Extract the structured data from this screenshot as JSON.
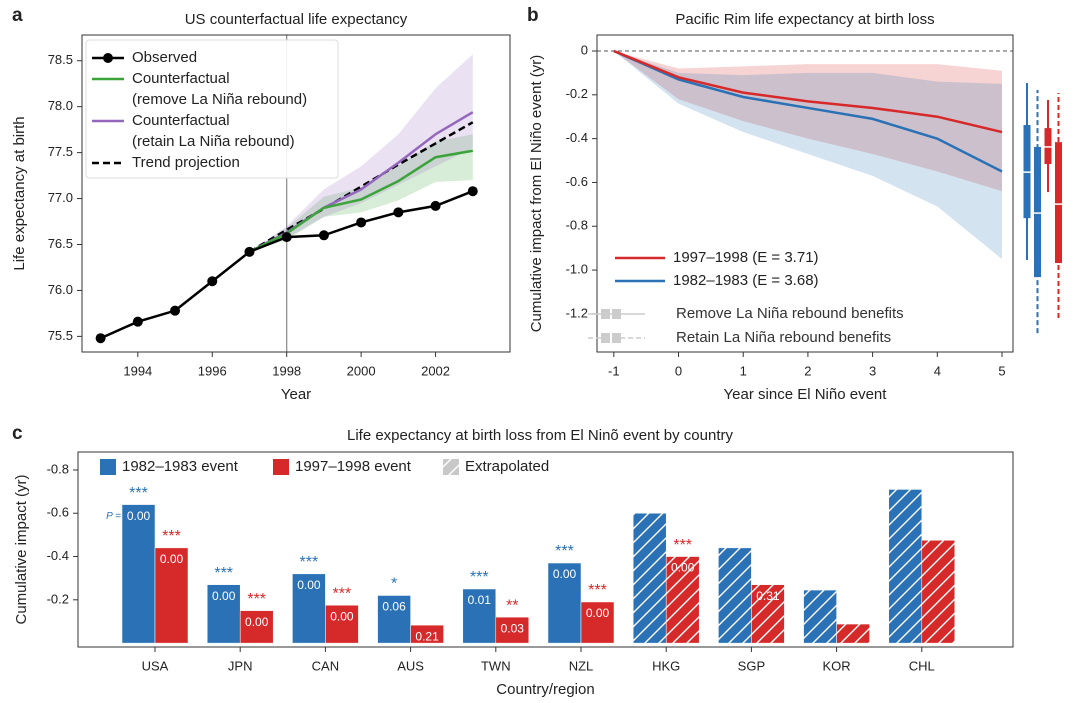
{
  "chart_data": [
    {
      "type": "line",
      "panel_label": "a",
      "title": "US counterfactual life expectancy",
      "xlabel": "Year",
      "ylabel": "Life expectancy at birth",
      "x": [
        1993,
        1994,
        1995,
        1996,
        1997,
        1998,
        1999,
        2000,
        2001,
        2002,
        2003
      ],
      "xlim": [
        1992.5,
        2004.0
      ],
      "xticks": [
        1994,
        1996,
        1998,
        2000,
        2002
      ],
      "ylim": [
        75.33,
        78.78
      ],
      "yticks": [
        75.5,
        {
          "value": 76,
          "label": "76.0"
        },
        76.5,
        {
          "value": 77,
          "label": "77.0"
        },
        77.5,
        {
          "value": 78,
          "label": "78.0"
        },
        78.5
      ],
      "vline": 1998,
      "series": [
        {
          "name": "Observed",
          "color": "#000000",
          "marker": "o",
          "linestyle": "solid",
          "values": [
            75.48,
            75.66,
            75.78,
            76.1,
            76.42,
            76.58,
            76.6,
            76.74,
            76.85,
            76.92,
            77.08
          ]
        },
        {
          "name": "Counterfactual\n(remove La Niña rebound)",
          "color": "#3aa33a",
          "linestyle": "solid",
          "values": [
            null,
            null,
            null,
            null,
            76.42,
            76.62,
            76.9,
            76.99,
            77.19,
            77.45,
            77.52
          ],
          "lower": [
            null,
            null,
            null,
            null,
            76.42,
            76.55,
            76.8,
            76.85,
            76.98,
            77.18,
            77.2
          ],
          "upper": [
            null,
            null,
            null,
            null,
            76.42,
            76.68,
            77.02,
            77.12,
            77.36,
            77.62,
            77.7
          ]
        },
        {
          "name": "Counterfactual\n(retain La Niña rebound)",
          "color": "#9467bd",
          "linestyle": "solid",
          "values": [
            null,
            null,
            null,
            null,
            76.42,
            76.63,
            76.9,
            77.1,
            77.39,
            77.7,
            77.94
          ],
          "lower": [
            null,
            null,
            null,
            null,
            76.42,
            76.57,
            76.8,
            76.95,
            77.15,
            77.35,
            77.55
          ],
          "upper": [
            null,
            null,
            null,
            null,
            76.42,
            76.7,
            77.1,
            77.35,
            77.7,
            78.2,
            78.57
          ]
        },
        {
          "name": "Trend projection",
          "color": "#000000",
          "linestyle": "dashed",
          "values": [
            null,
            null,
            null,
            null,
            76.42,
            76.66,
            76.89,
            77.13,
            77.37,
            77.6,
            77.83
          ]
        }
      ]
    },
    {
      "type": "line",
      "panel_label": "b",
      "title": "Pacific Rim life expectancy at birth loss",
      "xlabel": "Year since El Niño event",
      "ylabel": "Cumulative impact from El Niño event (yr)",
      "x": [
        -1,
        0,
        1,
        2,
        3,
        4,
        5
      ],
      "xlim": [
        -1.26,
        5.17
      ],
      "xticks": [
        -1,
        0,
        1,
        2,
        3,
        4,
        5
      ],
      "ylim": [
        -1.374,
        0.073
      ],
      "yticks": [
        -1.2,
        {
          "value": -1,
          "label": "-1.0"
        },
        -0.8,
        -0.6,
        -0.4,
        -0.2,
        0
      ],
      "hline": 0,
      "series": [
        {
          "name": "1997–1998 (E = 3.71)",
          "color": "#d62a2a",
          "linestyle": "solid",
          "values": [
            0,
            -0.12,
            -0.19,
            -0.23,
            -0.26,
            -0.3,
            -0.37
          ],
          "lower": [
            0,
            -0.22,
            -0.32,
            -0.4,
            -0.47,
            -0.55,
            -0.64
          ],
          "upper": [
            0,
            -0.08,
            -0.07,
            -0.06,
            -0.06,
            -0.06,
            -0.09
          ]
        },
        {
          "name": "1982–1983 (E = 3.68)",
          "color": "#2a72b5",
          "linestyle": "solid",
          "values": [
            0,
            -0.13,
            -0.21,
            -0.26,
            -0.31,
            -0.4,
            -0.55
          ],
          "lower": [
            0,
            -0.24,
            -0.37,
            -0.47,
            -0.57,
            -0.71,
            -0.95
          ],
          "upper": [
            0,
            -0.1,
            -0.11,
            -0.1,
            -0.1,
            -0.14,
            -0.15
          ]
        }
      ],
      "boxplots": [
        {
          "color": "#2a72b5",
          "linestyle": "solid",
          "whislo": -0.954,
          "q1": -0.763,
          "med": -0.553,
          "q3": -0.338,
          "whishi": -0.146
        },
        {
          "color": "#2a72b5",
          "linestyle": "dashed",
          "whislo": -1.288,
          "q1": -1.032,
          "med": -0.74,
          "q3": -0.438,
          "whishi": -0.178
        },
        {
          "color": "#d62a2a",
          "linestyle": "solid",
          "whislo": -0.644,
          "q1": -0.516,
          "med": -0.438,
          "q3": -0.352,
          "whishi": -0.224
        },
        {
          "color": "#d62a2a",
          "linestyle": "dashed",
          "whislo": -1.219,
          "q1": -0.968,
          "med": -0.699,
          "q3": -0.416,
          "whishi": -0.192
        }
      ],
      "box_legend_color": "#cccccc",
      "box_legend": [
        {
          "label": "Remove La Niña rebound benefits",
          "linestyle": "solid"
        },
        {
          "label": "Retain La Niña rebound benefits",
          "linestyle": "dashed"
        }
      ]
    },
    {
      "type": "bar",
      "panel_label": "c",
      "title": "Life expectancy at birth loss from El Ninõ event by country",
      "xlabel": "Country/region",
      "ylabel": "Cumulative impact (yr)",
      "categories": [
        "USA",
        "JPN",
        "CAN",
        "AUS",
        "TWN",
        "NZL",
        "HKG",
        "SGP",
        "KOR",
        "CHL"
      ],
      "ylim": [
        0.018,
        -0.883
      ],
      "yticks": [
        -0.8,
        -0.6,
        -0.4,
        -0.2
      ],
      "extrapolated": [
        false,
        false,
        false,
        false,
        false,
        false,
        true,
        true,
        true,
        true
      ],
      "extrapolated_label": "Extrapolated",
      "extrapolated_color": "#c8c8c8",
      "p_annotation": "P =",
      "series": [
        {
          "name": "1982–1983 event",
          "color": "#2a72b5",
          "values": [
            -0.64,
            -0.27,
            -0.32,
            -0.22,
            -0.25,
            -0.37,
            -0.6,
            -0.44,
            -0.245,
            -0.71
          ],
          "p_values": [
            "0.00",
            "0.00",
            "0.00",
            "0.06",
            "0.01",
            "0.00",
            null,
            null,
            null,
            null
          ],
          "stars": [
            "***",
            "***",
            "***",
            "*",
            "***",
            "***",
            null,
            null,
            null,
            null
          ]
        },
        {
          "name": "1997–1998 event",
          "color": "#d62a2a",
          "values": [
            -0.44,
            -0.15,
            -0.175,
            -0.083,
            -0.12,
            -0.19,
            -0.4,
            -0.27,
            -0.088,
            -0.475
          ],
          "p_values": [
            "0.00",
            "0.00",
            "0.00",
            "0.21",
            "0.03",
            "0.00",
            "0.00",
            "0.31",
            null,
            null
          ],
          "stars": [
            "***",
            "***",
            "***",
            null,
            "**",
            "***",
            "***",
            null,
            null,
            null
          ]
        }
      ]
    }
  ]
}
